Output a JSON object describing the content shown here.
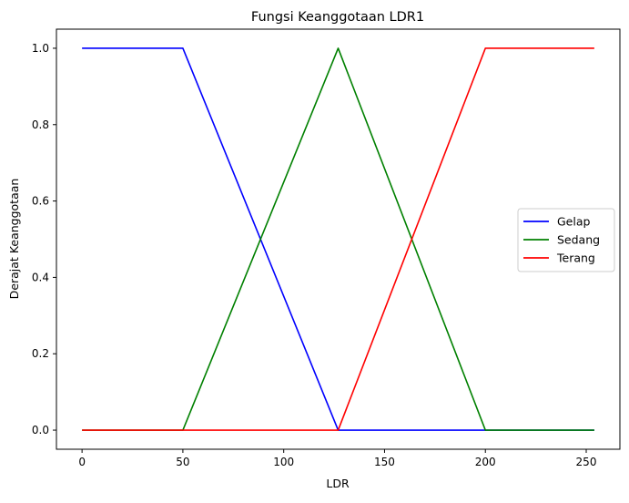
{
  "chart_data": {
    "type": "line",
    "title": "Fungsi Keanggotaan LDR1",
    "xlabel": "LDR",
    "ylabel": "Derajat Keanggotaan",
    "xlim": [
      -12.7,
      266.7
    ],
    "ylim": [
      -0.05,
      1.05
    ],
    "xticks": [
      0,
      50,
      100,
      150,
      200,
      250
    ],
    "xtick_labels": [
      "0",
      "50",
      "100",
      "150",
      "200",
      "250"
    ],
    "yticks": [
      0.0,
      0.2,
      0.4,
      0.6,
      0.8,
      1.0
    ],
    "ytick_labels": [
      "0.0",
      "0.2",
      "0.4",
      "0.6",
      "0.8",
      "1.0"
    ],
    "grid": false,
    "legend_position": "center-right",
    "series": [
      {
        "name": "Gelap",
        "color": "#0000ff",
        "x": [
          0,
          50,
          127,
          254
        ],
        "y": [
          1,
          1,
          0,
          0
        ]
      },
      {
        "name": "Sedang",
        "color": "#008000",
        "x": [
          0,
          50,
          127,
          200,
          254
        ],
        "y": [
          0,
          0,
          1,
          0,
          0
        ]
      },
      {
        "name": "Terang",
        "color": "#ff0000",
        "x": [
          0,
          127,
          200,
          254
        ],
        "y": [
          0,
          0,
          1,
          1
        ]
      }
    ]
  }
}
